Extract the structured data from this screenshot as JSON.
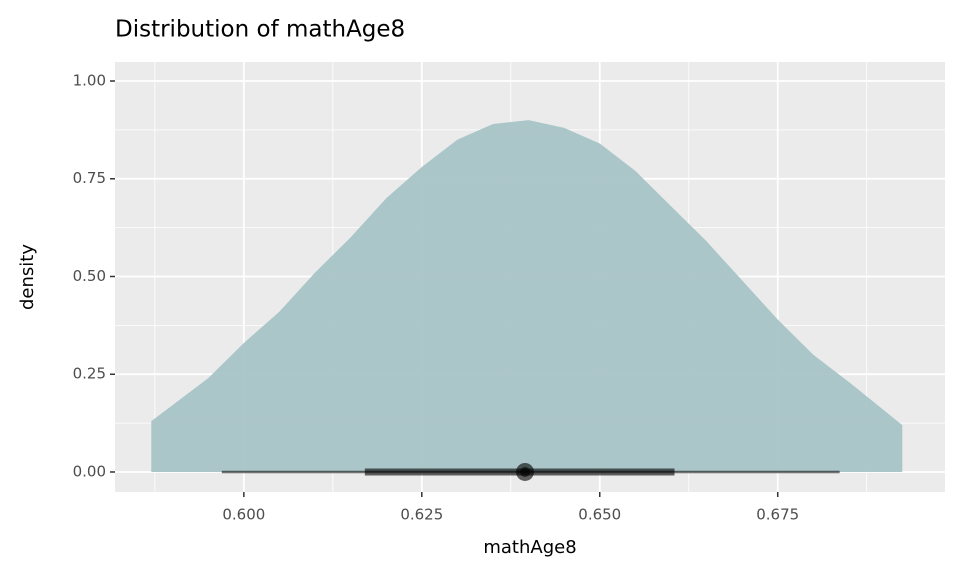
{
  "chart_data": {
    "type": "halfeye",
    "title": "Distribution of mathAge8",
    "x_label": "mathAge8",
    "y_label": "density",
    "color": "#a8c4c6",
    "interval_color": "#000000",
    "grid": true,
    "xlim": [
      0.5819,
      0.6985
    ],
    "ylim": [
      -0.0512,
      1.0486
    ],
    "xticks": [
      {
        "value": 0.6,
        "label": "0.600"
      },
      {
        "value": 0.625,
        "label": "0.625"
      },
      {
        "value": 0.65,
        "label": "0.650"
      },
      {
        "value": 0.675,
        "label": "0.675"
      }
    ],
    "yticks": [
      {
        "value": 0,
        "label": "0.00"
      },
      {
        "value": 0.25,
        "label": "0.25"
      },
      {
        "value": 0.5,
        "label": "0.50"
      },
      {
        "value": 0.75,
        "label": "0.75"
      },
      {
        "value": 1,
        "label": "1.00"
      }
    ],
    "x_minor_ticks": [
      0.5875,
      0.6125,
      0.6375,
      0.6625,
      0.6875
    ],
    "y_minor_ticks": [
      0.125,
      0.375,
      0.625,
      0.875
    ],
    "density": {
      "x": [
        0.587,
        0.595,
        0.6,
        0.605,
        0.61,
        0.615,
        0.62,
        0.625,
        0.63,
        0.635,
        0.64,
        0.645,
        0.65,
        0.655,
        0.66,
        0.665,
        0.67,
        0.675,
        0.68,
        0.685,
        0.6925
      ],
      "y": [
        0.13,
        0.24,
        0.33,
        0.41,
        0.51,
        0.6,
        0.7,
        0.78,
        0.85,
        0.89,
        0.9,
        0.88,
        0.84,
        0.77,
        0.68,
        0.59,
        0.49,
        0.39,
        0.3,
        0.23,
        0.12
      ]
    },
    "interval_outer": [
      0.5969,
      0.6837
    ],
    "interval_inner": [
      0.617,
      0.6605
    ],
    "point": 0.6395
  }
}
